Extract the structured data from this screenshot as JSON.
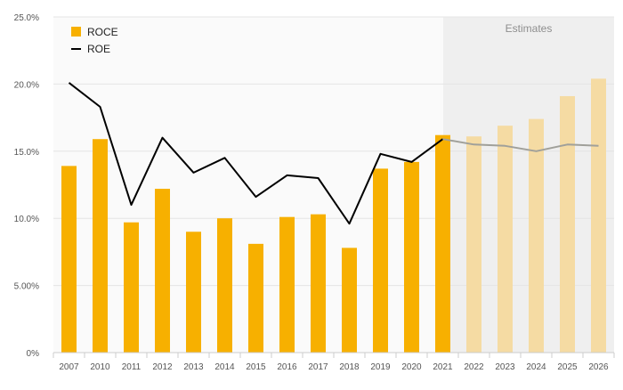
{
  "chart_data": {
    "type": "bar",
    "categories": [
      "2007",
      "2010",
      "2011",
      "2012",
      "2013",
      "2014",
      "2015",
      "2016",
      "2017",
      "2018",
      "2019",
      "2020",
      "2021",
      "2022",
      "2023",
      "2024",
      "2025",
      "2026"
    ],
    "series": [
      {
        "name": "ROCE",
        "kind": "bar",
        "color": "#F7B000",
        "values": [
          13.9,
          15.9,
          9.7,
          12.2,
          9.0,
          10.0,
          8.1,
          10.1,
          10.3,
          7.8,
          13.7,
          14.2,
          16.2,
          16.1,
          16.9,
          17.4,
          19.1,
          20.4
        ]
      },
      {
        "name": "ROE",
        "kind": "line",
        "color": "#000000",
        "values": [
          20.1,
          18.3,
          11.0,
          16.0,
          13.4,
          14.5,
          11.6,
          13.2,
          13.0,
          9.6,
          14.8,
          14.2,
          15.9,
          15.5,
          15.4,
          15.0,
          15.5,
          15.4
        ]
      }
    ],
    "estimates": {
      "label": "Estimates",
      "start_category": "2021",
      "first_estimate_category": "2022",
      "shade_color": "#EFEFEF",
      "bar_color": "#F5DBA3",
      "line_color": "#A0A09A"
    },
    "yaxis": {
      "ylim": [
        0,
        25
      ],
      "ticks": [
        0,
        5,
        10,
        15,
        20,
        25
      ],
      "tick_labels": [
        "0%",
        "5.00%",
        "10.0%",
        "15.0%",
        "20.0%",
        "25.0%"
      ]
    },
    "title": "",
    "xlabel": "",
    "ylabel": "",
    "grid": true,
    "legend_position": "top-left",
    "background_color": "#FAFAFA"
  }
}
